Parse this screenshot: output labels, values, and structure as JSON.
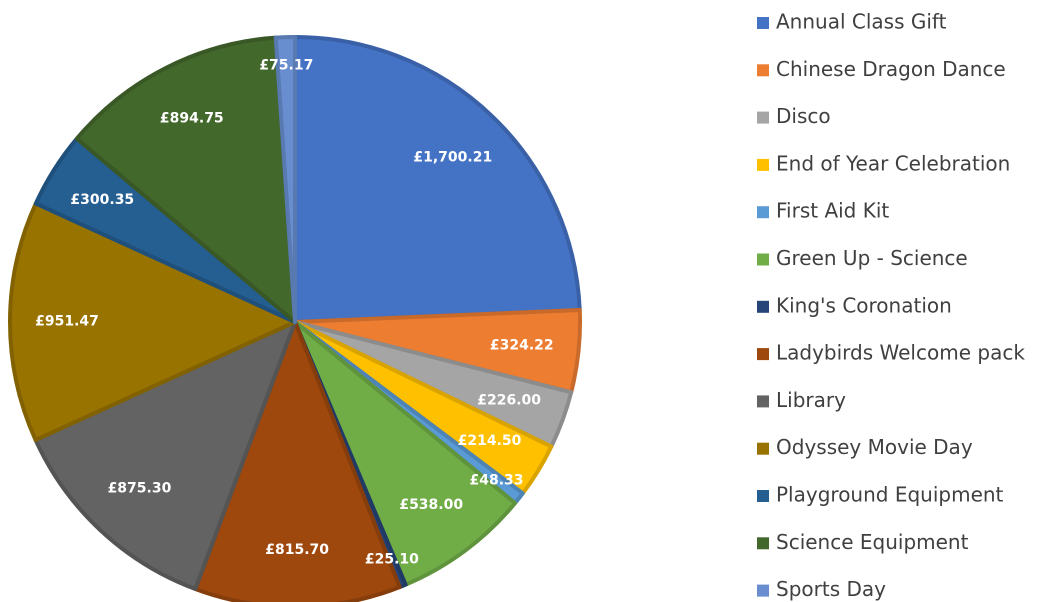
{
  "chart_data": {
    "type": "pie",
    "categories": [
      "Annual Class Gift",
      "Chinese Dragon Dance",
      "Disco",
      "End of Year Celebration",
      "First Aid Kit",
      "Green Up - Science",
      "King's Coronation",
      "Ladybirds Welcome pack",
      "Library",
      "Odyssey Movie Day",
      "Playground Equipment",
      "Science Equipment",
      "Sports Day"
    ],
    "values": [
      1700.21,
      324.22,
      226.0,
      214.5,
      48.33,
      538.0,
      25.1,
      815.7,
      875.3,
      951.47,
      300.35,
      894.75,
      75.17
    ],
    "value_labels": [
      "£1,700.21",
      "£324.22",
      "£226.00",
      "£214.50",
      "£48.33",
      "£538.00",
      "£25.10",
      "£815.70",
      "£875.30",
      "£951.47",
      "£300.35",
      "£894.75",
      "£75.17"
    ],
    "colors": [
      "#4472c4",
      "#ed7d31",
      "#a5a5a5",
      "#ffc000",
      "#5b9bd5",
      "#70ad47",
      "#264478",
      "#9e480e",
      "#636363",
      "#997300",
      "#255e91",
      "#43682b",
      "#698ed0"
    ],
    "legend": "right"
  }
}
